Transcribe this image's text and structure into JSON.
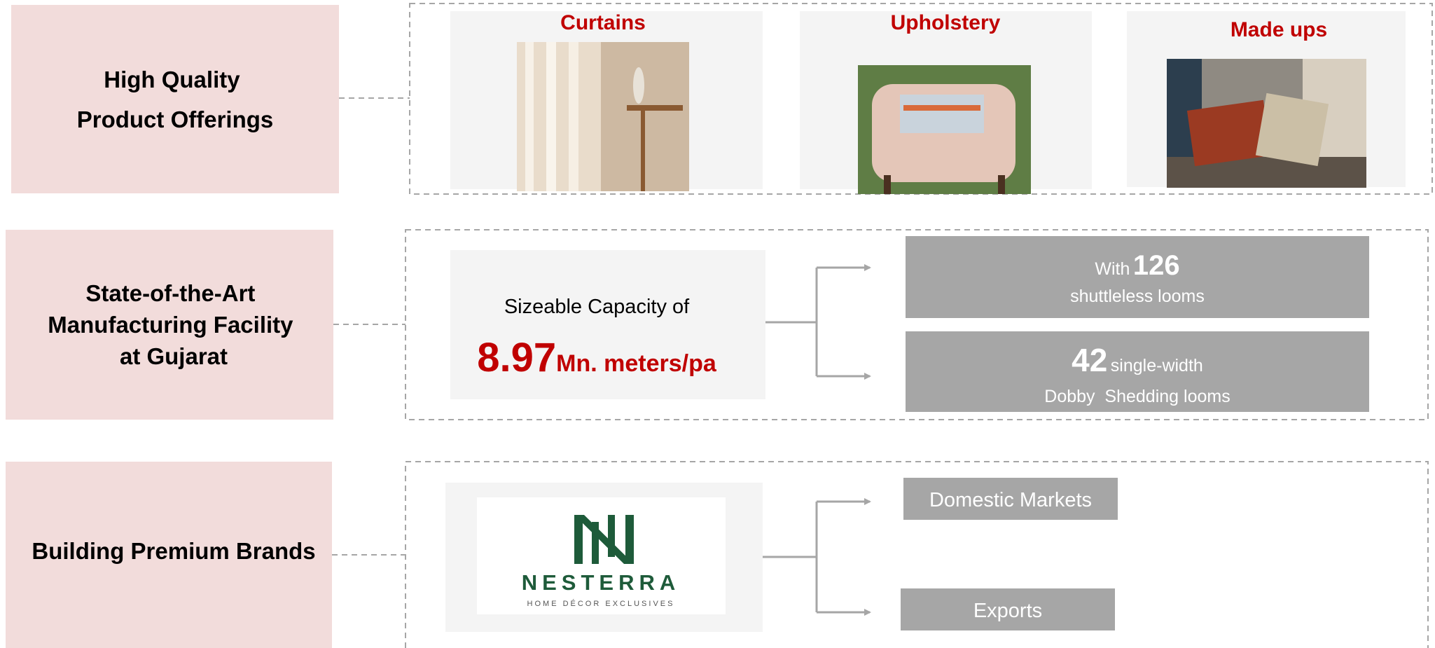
{
  "rows": [
    {
      "label": [
        "High Quality",
        "Product Offerings"
      ],
      "products": [
        "Curtains",
        "Upholstery",
        "Made ups"
      ]
    },
    {
      "label": [
        "State-of-the-Art",
        "Manufacturing Facility",
        "at Gujarat"
      ],
      "capacity": {
        "caption": "Sizeable Capacity of",
        "value": "8.97",
        "unit": "Mn. meters/pa"
      },
      "facts": [
        {
          "prefix": "With",
          "number": "126",
          "text": "shuttleless looms"
        },
        {
          "number": "42",
          "suffix": "single-width",
          "text": "Dobby  Shedding looms"
        }
      ]
    },
    {
      "label": [
        "Building Premium Brands"
      ],
      "brand": {
        "name": "NESTERRA",
        "tagline": "HOME DÉCOR EXCLUSIVES"
      },
      "markets": [
        "Domestic Markets",
        "Exports"
      ]
    }
  ]
}
